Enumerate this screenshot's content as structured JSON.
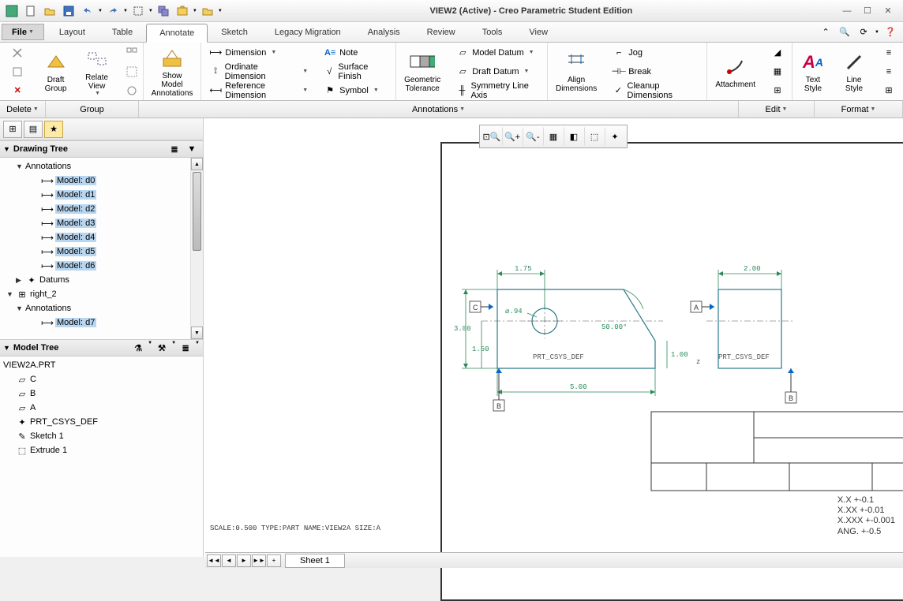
{
  "title": "VIEW2 (Active) - Creo Parametric Student Edition",
  "file_button": "File",
  "tabs": [
    "Layout",
    "Table",
    "Annotate",
    "Sketch",
    "Legacy Migration",
    "Analysis",
    "Review",
    "Tools",
    "View"
  ],
  "active_tab": 2,
  "ribbon": {
    "delete": "Delete",
    "draft_group": "Draft\nGroup",
    "relate_view": "Relate\nView",
    "show_model": "Show Model\nAnnotations",
    "dimension": "Dimension",
    "ordinate": "Ordinate Dimension",
    "reference": "Reference Dimension",
    "note": "Note",
    "surface_finish": "Surface Finish",
    "symbol": "Symbol",
    "geometric_tolerance": "Geometric\nTolerance",
    "model_datum": "Model Datum",
    "draft_datum": "Draft Datum",
    "symmetry": "Symmetry Line Axis",
    "align_dims": "Align\nDimensions",
    "jog": "Jog",
    "break": "Break",
    "cleanup": "Cleanup Dimensions",
    "attachment": "Attachment",
    "text_style": "Text\nStyle",
    "line_style": "Line\nStyle"
  },
  "subbar": {
    "delete": "Delete",
    "group": "Group",
    "annotations": "Annotations",
    "edit": "Edit",
    "format": "Format"
  },
  "drawing_tree": {
    "title": "Drawing Tree",
    "annotations_label": "Annotations",
    "items": [
      "Model: d0",
      "Model: d1",
      "Model: d2",
      "Model: d3",
      "Model: d4",
      "Model: d5",
      "Model: d6"
    ],
    "datums": "Datums",
    "right2": "right_2",
    "annotations2": "Annotations",
    "d7": "Model: d7"
  },
  "model_tree": {
    "title": "Model Tree",
    "root": "VIEW2A.PRT",
    "items": [
      "C",
      "B",
      "A",
      "PRT_CSYS_DEF",
      "Sketch 1",
      "Extrude 1"
    ]
  },
  "sheet": {
    "tab": "Sheet 1",
    "scale_info": "SCALE:0.500  TYPE:PART  NAME:VIEW2A  SIZE:A",
    "tolerance_notes": [
      "X.X   +-0.1",
      "X.XX  +-0.01",
      "X.XXX +-0.001",
      "ANG.  +-0.5"
    ]
  },
  "drawing": {
    "dims": {
      "d175": "1.75",
      "d200": "2.00",
      "d300": "3.00",
      "d094": "⌀.94",
      "d50": "50.00°",
      "d150": "1.50",
      "d100": "1.00",
      "d500": "5.00"
    },
    "csys": "PRT_CSYS_DEF",
    "datum_a": "A",
    "datum_b": "B",
    "datum_c": "C"
  },
  "colors": {
    "dim": "#2a8a5a",
    "geom": "#2a7a8a",
    "highlight": "#b8d6f0"
  }
}
